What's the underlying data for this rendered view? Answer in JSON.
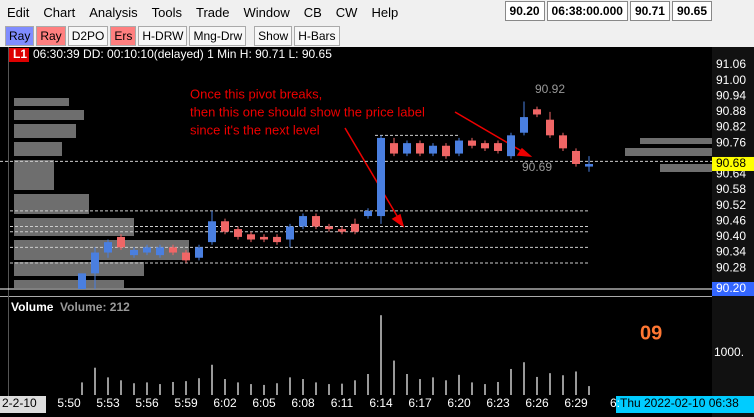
{
  "menu": [
    "Edit",
    "Chart",
    "Analysis",
    "Tools",
    "Trade",
    "Window",
    "CB",
    "CW",
    "Help"
  ],
  "status": [
    "90.20",
    "06:38:00.000",
    "90.71",
    "90.65"
  ],
  "toolbar": [
    "Ray",
    "Ray",
    "D2PO",
    "Ers",
    "H-DRW",
    "Mng-Drw",
    "Show",
    "H-Bars"
  ],
  "chart": {
    "badge": "L1",
    "info": "06:30:39 DD: 00:10:10(delayed) 1 Min H: 90.71 L: 90.65",
    "ylim": [
      90.2,
      91.06
    ],
    "price_ticks": [
      91.06,
      {
        "value": 91,
        "label": "91.00"
      },
      90.94,
      90.88,
      90.82,
      90.76,
      90.64,
      90.58,
      90.52,
      90.46,
      {
        "value": 90.4,
        "label": "90.40"
      },
      90.34,
      90.28
    ],
    "last_price": 90.68,
    "low_price": {
      "value": 90.2,
      "label": "90.20"
    },
    "levels": [
      90.79,
      90.69,
      90.5,
      90.44,
      90.42,
      90.36,
      90.3
    ],
    "candles": [
      [
        90.2,
        90.26,
        90.2,
        90.26
      ],
      [
        90.26,
        90.36,
        90.2,
        90.34
      ],
      [
        90.34,
        90.39,
        90.32,
        90.38
      ],
      [
        90.4,
        90.41,
        90.35,
        90.36
      ],
      [
        90.33,
        90.36,
        90.32,
        90.35
      ],
      [
        90.34,
        90.37,
        90.33,
        90.36
      ],
      [
        90.33,
        90.37,
        90.32,
        90.36
      ],
      [
        90.36,
        90.37,
        90.33,
        90.34
      ],
      [
        90.34,
        90.35,
        90.3,
        90.31
      ],
      [
        90.32,
        90.37,
        90.31,
        90.36
      ],
      [
        90.38,
        90.5,
        90.37,
        90.46
      ],
      [
        90.46,
        90.47,
        90.41,
        90.42
      ],
      [
        90.43,
        90.44,
        90.39,
        90.4
      ],
      [
        90.41,
        90.42,
        90.38,
        90.39
      ],
      [
        90.4,
        90.41,
        90.38,
        90.39
      ],
      [
        90.4,
        90.41,
        90.37,
        90.38
      ],
      [
        90.39,
        90.45,
        90.36,
        90.44
      ],
      [
        90.44,
        90.49,
        90.43,
        90.48
      ],
      [
        90.48,
        90.49,
        90.43,
        90.44
      ],
      [
        90.44,
        90.45,
        90.42,
        90.43
      ],
      [
        90.43,
        90.44,
        90.41,
        90.42
      ],
      [
        90.45,
        90.47,
        90.41,
        90.42
      ],
      [
        90.48,
        90.51,
        90.47,
        90.5
      ],
      [
        90.48,
        90.79,
        90.45,
        90.78
      ],
      [
        90.76,
        90.78,
        90.71,
        90.72
      ],
      [
        90.72,
        90.77,
        90.71,
        90.76
      ],
      [
        90.76,
        90.77,
        90.71,
        90.72
      ],
      [
        90.72,
        90.76,
        90.71,
        90.75
      ],
      [
        90.75,
        90.76,
        90.7,
        90.71
      ],
      [
        90.72,
        90.78,
        90.71,
        90.77
      ],
      [
        90.77,
        90.78,
        90.74,
        90.75
      ],
      [
        90.76,
        90.77,
        90.73,
        90.74
      ],
      [
        90.76,
        90.77,
        90.72,
        90.73
      ],
      [
        90.71,
        90.8,
        90.7,
        90.79
      ],
      [
        90.8,
        90.92,
        90.79,
        90.86
      ],
      [
        90.89,
        90.9,
        90.86,
        90.87
      ],
      [
        90.85,
        90.88,
        90.78,
        90.79
      ],
      [
        90.79,
        90.8,
        90.73,
        90.74
      ],
      [
        90.73,
        90.74,
        90.67,
        90.68
      ],
      [
        90.67,
        90.71,
        90.65,
        90.68
      ]
    ],
    "price_labels": [
      90.92,
      90.69
    ],
    "annotation": [
      "Once this pivot breaks,",
      "then this one should show the price label",
      "since it's the next level"
    ],
    "volume": {
      "title": "Volume",
      "current": "Volume: 212",
      "tick": {
        "value": 1000,
        "label": "1000."
      },
      "values": [
        300,
        650,
        420,
        350,
        280,
        300,
        260,
        310,
        330,
        400,
        720,
        380,
        300,
        260,
        240,
        280,
        420,
        380,
        300,
        260,
        270,
        350,
        500,
        1900,
        820,
        500,
        380,
        420,
        350,
        480,
        300,
        260,
        310,
        620,
        780,
        430,
        520,
        470,
        560,
        212
      ]
    },
    "big_number": "09",
    "time_axis": {
      "start": "2-2-10",
      "labels": [
        "5:50",
        "5:53",
        "5:56",
        "5:59",
        "6:02",
        "6:05",
        "6:08",
        "6:11",
        "6:14",
        "6:17",
        "6:20",
        "6:23",
        "6:26",
        "6:29",
        "6:"
      ],
      "current": "Thu 2022-02-10 06:38"
    }
  }
}
